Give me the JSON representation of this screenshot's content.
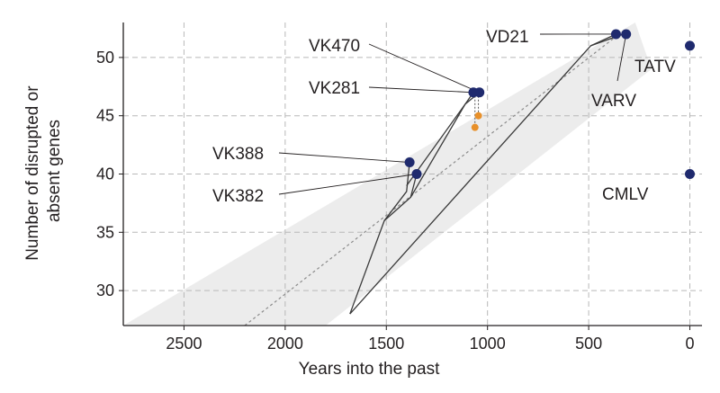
{
  "chart_data": {
    "type": "scatter",
    "title": "",
    "xlabel": "Years into the past",
    "ylabel_lines": [
      "Number of disrupted or",
      "absent genes"
    ],
    "xlim": [
      2800,
      -60
    ],
    "ylim": [
      27,
      53
    ],
    "x_reversed": true,
    "xticks": [
      2500,
      2000,
      1500,
      1000,
      500,
      0
    ],
    "yticks": [
      30,
      35,
      40,
      45,
      50
    ],
    "grid": true,
    "colors": {
      "point": "#1f2a6e",
      "secondary_point": "#e8902a",
      "band": "#ececec",
      "trend": "#8c8c8c",
      "tree": "#3a3a3a"
    },
    "points": [
      {
        "label": "VD21",
        "x": 365,
        "y": 52
      },
      {
        "label": "VARV",
        "x": 315,
        "y": 52
      },
      {
        "label": "TATV",
        "x": 0,
        "y": 51
      },
      {
        "label": "VK470",
        "x": 1040,
        "y": 47
      },
      {
        "label": "VK281",
        "x": 1070,
        "y": 47
      },
      {
        "label": "VK388",
        "x": 1385,
        "y": 41
      },
      {
        "label": "VK382",
        "x": 1350,
        "y": 40
      },
      {
        "label": "CMLV",
        "x": 0,
        "y": 40
      }
    ],
    "secondary_points": [
      {
        "x": 1045,
        "y": 45
      },
      {
        "x": 1062,
        "y": 44
      }
    ],
    "trend_line": {
      "x": [
        2200,
        350
      ],
      "y": [
        27,
        52
      ]
    },
    "confidence_band": {
      "upper": {
        "x": [
          2800,
          270
        ],
        "y": [
          27,
          53
        ]
      },
      "lower": {
        "x": [
          1800,
          190
        ],
        "y": [
          27,
          49
        ]
      }
    },
    "tree_branches": [
      {
        "x": [
          1680,
          1510,
          1400,
          1385
        ],
        "y": [
          28,
          36,
          38.5,
          41
        ]
      },
      {
        "x": [
          1510,
          1380,
          1350
        ],
        "y": [
          36,
          38,
          40
        ]
      },
      {
        "x": [
          1380,
          1110,
          1070
        ],
        "y": [
          38,
          46,
          47
        ]
      },
      {
        "x": [
          1400,
          1110,
          1040
        ],
        "y": [
          39,
          46,
          47
        ]
      },
      {
        "x": [
          1680,
          490,
          365
        ],
        "y": [
          28,
          51,
          52
        ]
      },
      {
        "x": [
          490,
          330,
          315
        ],
        "y": [
          51,
          52,
          52
        ]
      }
    ]
  }
}
